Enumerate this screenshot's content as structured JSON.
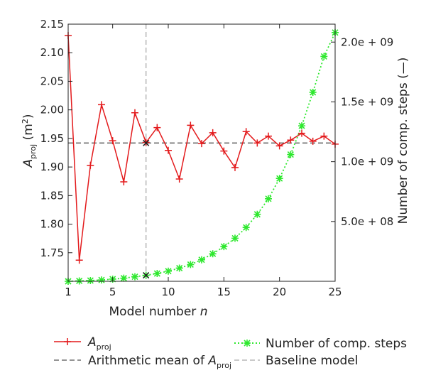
{
  "chart_data": {
    "type": "line",
    "x_axis": {
      "label_prefix": "Model number ",
      "label_var": "n",
      "range": [
        1,
        25
      ],
      "ticks": [
        1,
        5,
        10,
        15,
        20,
        25
      ]
    },
    "y_left_axis": {
      "label_main": "A",
      "label_sub": "proj",
      "label_unit_open": " (m",
      "label_unit_sup": "2",
      "label_unit_close": ")",
      "range": [
        1.7,
        2.15
      ],
      "ticks": [
        "1.75",
        "1.80",
        "1.85",
        "1.90",
        "1.95",
        "2.00",
        "2.05",
        "2.10",
        "2.15"
      ]
    },
    "y_right_axis": {
      "label": "Number of comp. steps (—)",
      "range": [
        0,
        2150000000
      ],
      "ticks": [
        {
          "value": 500000000,
          "label": "5.0e + 08"
        },
        {
          "value": 1000000000,
          "label": "1.0e + 09"
        },
        {
          "value": 1500000000,
          "label": "1.5e + 09"
        },
        {
          "value": 2000000000,
          "label": "2.0e + 09"
        }
      ]
    },
    "series": [
      {
        "name_main": "A",
        "name_sub": "proj",
        "axis": "left",
        "style": "solid",
        "marker": "plus",
        "color": "#e31a1c",
        "x": [
          1,
          2,
          3,
          4,
          5,
          6,
          7,
          8,
          9,
          10,
          11,
          12,
          13,
          14,
          15,
          16,
          17,
          18,
          19,
          20,
          21,
          22,
          23,
          24,
          25
        ],
        "values": [
          2.13,
          1.737,
          1.903,
          2.009,
          1.946,
          1.874,
          1.995,
          1.943,
          1.969,
          1.929,
          1.879,
          1.973,
          1.941,
          1.96,
          1.928,
          1.899,
          1.962,
          1.942,
          1.954,
          1.937,
          1.947,
          1.959,
          1.945,
          1.954,
          1.94
        ]
      },
      {
        "name": "Number of comp. steps",
        "axis": "right",
        "style": "dotted",
        "marker": "star",
        "color": "#2ee82e",
        "x": [
          1,
          2,
          3,
          4,
          5,
          6,
          7,
          8,
          9,
          10,
          11,
          12,
          13,
          14,
          15,
          16,
          17,
          18,
          19,
          20,
          21,
          22,
          23,
          24,
          25
        ],
        "values": [
          0,
          3000000,
          6000000,
          11000000,
          18000000,
          26000000,
          38000000,
          50000000,
          65000000,
          85000000,
          110000000,
          140000000,
          180000000,
          230000000,
          290000000,
          360000000,
          450000000,
          560000000,
          690000000,
          860000000,
          1060000000,
          1300000000,
          1580000000,
          1880000000,
          2080000000
        ]
      }
    ],
    "reference_lines": [
      {
        "name_prefix": "Arithmetic mean of ",
        "name_main": "A",
        "name_sub": "proj",
        "orientation": "horizontal",
        "axis": "left",
        "value": 1.942,
        "style": "dashed",
        "color": "#555555"
      },
      {
        "name": "Baseline model",
        "orientation": "vertical",
        "value": 8,
        "style": "dashed",
        "color": "#aaaaaa"
      }
    ],
    "baseline_marker": {
      "x": 8,
      "value": 1.942,
      "steps_value": 50000000,
      "color": "#222222"
    },
    "legend_position": "bottom",
    "grid": false
  }
}
